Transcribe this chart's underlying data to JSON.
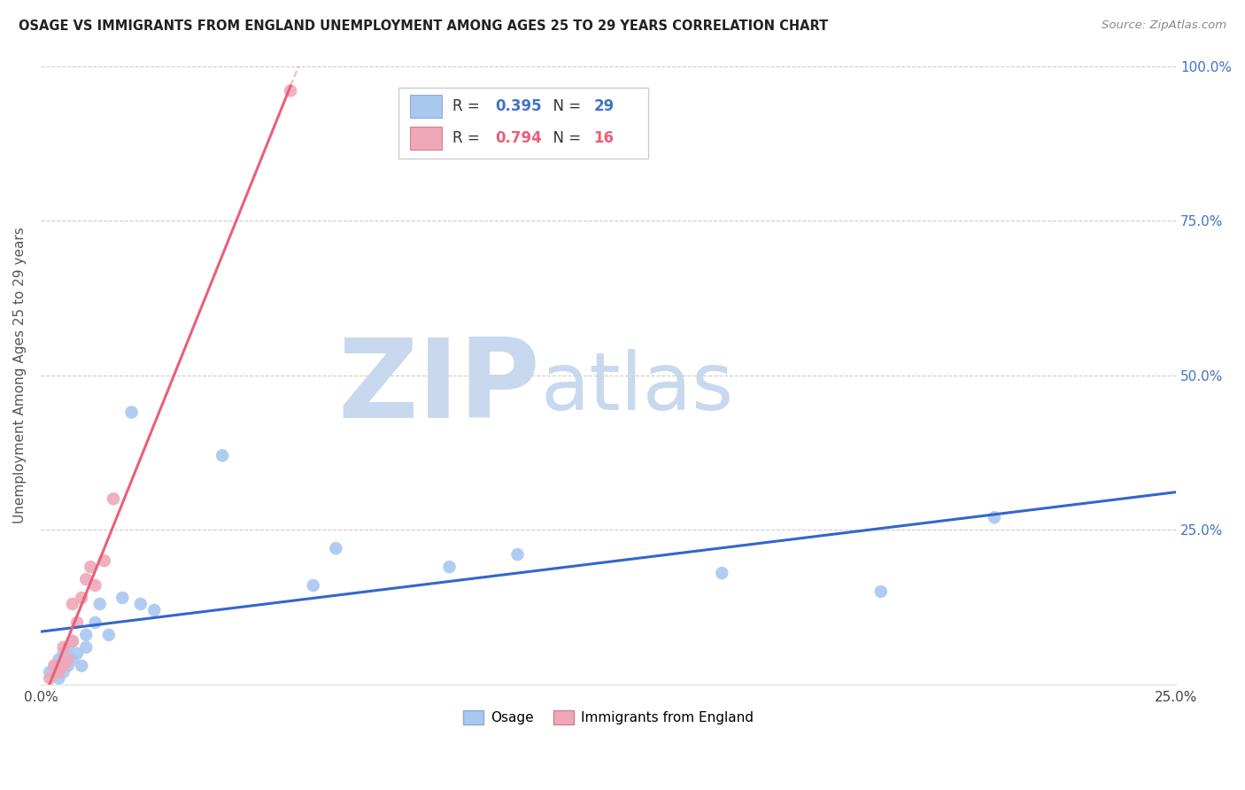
{
  "title": "OSAGE VS IMMIGRANTS FROM ENGLAND UNEMPLOYMENT AMONG AGES 25 TO 29 YEARS CORRELATION CHART",
  "source": "Source: ZipAtlas.com",
  "ylabel": "Unemployment Among Ages 25 to 29 years",
  "xlim": [
    0.0,
    0.25
  ],
  "ylim": [
    0.0,
    1.0
  ],
  "xticks": [
    0.0,
    0.05,
    0.1,
    0.15,
    0.2,
    0.25
  ],
  "yticks": [
    0.0,
    0.25,
    0.5,
    0.75,
    1.0
  ],
  "xticklabels": [
    "0.0%",
    "",
    "",
    "",
    "",
    "25.0%"
  ],
  "yticklabels_right": [
    "",
    "25.0%",
    "50.0%",
    "75.0%",
    "100.0%"
  ],
  "osage_x": [
    0.002,
    0.003,
    0.004,
    0.004,
    0.005,
    0.005,
    0.006,
    0.006,
    0.007,
    0.007,
    0.008,
    0.009,
    0.01,
    0.01,
    0.012,
    0.013,
    0.015,
    0.018,
    0.02,
    0.022,
    0.025,
    0.04,
    0.06,
    0.065,
    0.09,
    0.105,
    0.15,
    0.185,
    0.21
  ],
  "osage_y": [
    0.02,
    0.03,
    0.01,
    0.04,
    0.02,
    0.05,
    0.03,
    0.06,
    0.04,
    0.07,
    0.05,
    0.03,
    0.08,
    0.06,
    0.1,
    0.13,
    0.08,
    0.14,
    0.44,
    0.13,
    0.12,
    0.37,
    0.16,
    0.22,
    0.19,
    0.21,
    0.18,
    0.15,
    0.27
  ],
  "england_x": [
    0.002,
    0.003,
    0.004,
    0.005,
    0.005,
    0.006,
    0.007,
    0.007,
    0.008,
    0.009,
    0.01,
    0.011,
    0.012,
    0.014,
    0.016,
    0.055
  ],
  "england_y": [
    0.01,
    0.03,
    0.02,
    0.03,
    0.06,
    0.04,
    0.07,
    0.13,
    0.1,
    0.14,
    0.17,
    0.19,
    0.16,
    0.2,
    0.3,
    0.96
  ],
  "osage_R": 0.395,
  "osage_N": 29,
  "england_R": 0.794,
  "england_N": 16,
  "osage_color": "#a8c8f0",
  "england_color": "#f0a8b8",
  "osage_line_color": "#3366cc",
  "england_line_color": "#e8607a",
  "legend_label_osage": "Osage",
  "legend_label_england": "Immigrants from England",
  "background_color": "#ffffff",
  "watermark_zip_color": "#c8d8ee",
  "watermark_atlas_color": "#c8d8ee",
  "title_color": "#222222",
  "source_color": "#888888",
  "axis_label_color": "#555555",
  "tick_color_right": "#4472c4",
  "grid_color": "#cccccc",
  "legend_box_color": "#dddddd"
}
